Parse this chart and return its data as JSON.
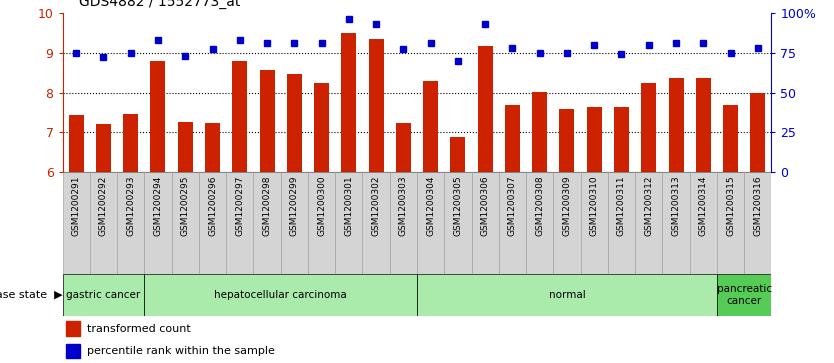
{
  "title": "GDS4882 / 1552773_at",
  "samples": [
    "GSM1200291",
    "GSM1200292",
    "GSM1200293",
    "GSM1200294",
    "GSM1200295",
    "GSM1200296",
    "GSM1200297",
    "GSM1200298",
    "GSM1200299",
    "GSM1200300",
    "GSM1200301",
    "GSM1200302",
    "GSM1200303",
    "GSM1200304",
    "GSM1200305",
    "GSM1200306",
    "GSM1200307",
    "GSM1200308",
    "GSM1200309",
    "GSM1200310",
    "GSM1200311",
    "GSM1200312",
    "GSM1200313",
    "GSM1200314",
    "GSM1200315",
    "GSM1200316"
  ],
  "transformed_count": [
    7.45,
    7.22,
    7.47,
    8.8,
    7.26,
    7.25,
    8.8,
    8.57,
    8.47,
    8.23,
    9.5,
    9.35,
    7.25,
    8.3,
    6.88,
    9.17,
    7.68,
    8.02,
    7.58,
    7.65,
    7.65,
    8.25,
    8.37,
    8.37,
    7.68,
    7.98
  ],
  "percentile_rank": [
    75,
    72,
    75,
    83,
    73,
    77,
    83,
    81,
    81,
    81,
    96,
    93,
    77,
    81,
    70,
    93,
    78,
    75,
    75,
    80,
    74,
    80,
    81,
    81,
    75,
    78
  ],
  "ylim": [
    6,
    10
  ],
  "yticks_left": [
    6,
    7,
    8,
    9,
    10
  ],
  "dotted_lines": [
    7.0,
    8.0,
    9.0
  ],
  "bar_color": "#cc2200",
  "dot_color": "#0000cc",
  "right_yticks": [
    0,
    25,
    50,
    75,
    100
  ],
  "right_ylabels": [
    "0",
    "25",
    "50",
    "75",
    "100%"
  ],
  "group_defs": [
    {
      "label": "gastric cancer",
      "start": 0,
      "end": 2,
      "light": true
    },
    {
      "label": "hepatocellular carcinoma",
      "start": 3,
      "end": 12,
      "light": true
    },
    {
      "label": "normal",
      "start": 13,
      "end": 23,
      "light": true
    },
    {
      "label": "pancreatic\ncancer",
      "start": 24,
      "end": 25,
      "light": false
    }
  ],
  "group_color_light": "#aaeaaa",
  "group_color_dark": "#55cc55",
  "tick_box_color": "#d4d4d4",
  "tick_box_edge": "#999999",
  "legend_bar_label": "transformed count",
  "legend_dot_label": "percentile rank within the sample",
  "disease_state_label": "disease state"
}
